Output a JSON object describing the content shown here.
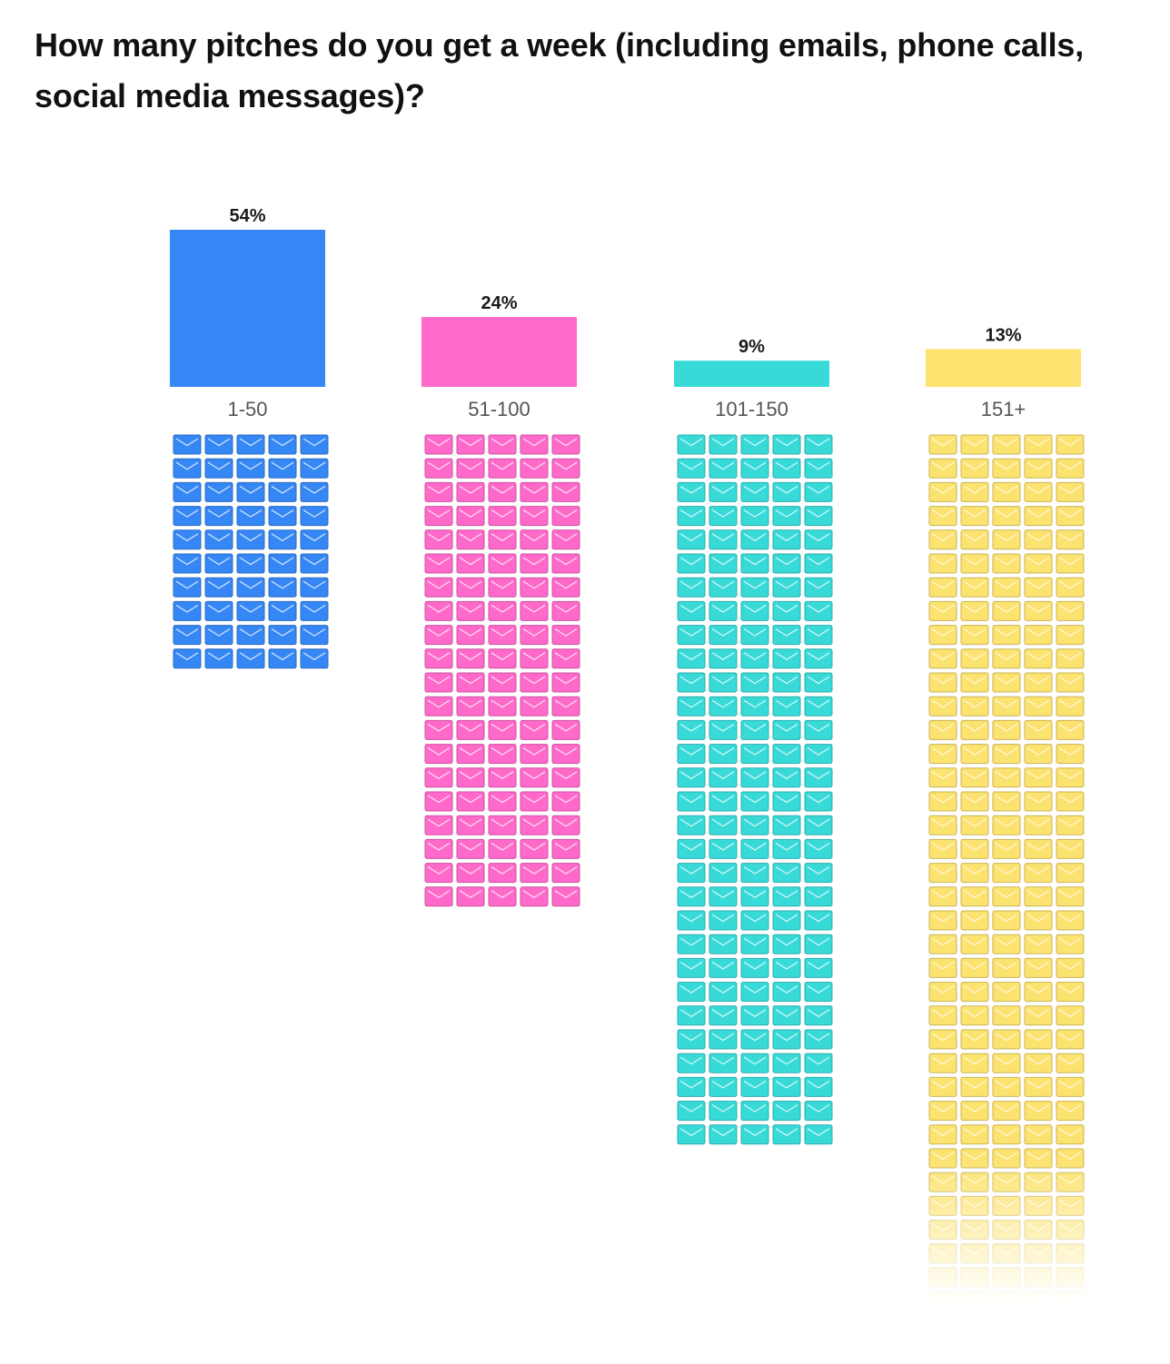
{
  "title": "How many pitches do you get a week (including emails, phone calls, social media messages)?",
  "chart_data": {
    "type": "bar",
    "title": "How many pitches do you get a week (including emails, phone calls, social media messages)?",
    "categories": [
      "1-50",
      "51-100",
      "101-150",
      "151+"
    ],
    "values": [
      54,
      24,
      9,
      13
    ],
    "value_labels": [
      "54%",
      "24%",
      "9%",
      "13%"
    ],
    "unit": "%",
    "colors": [
      "#3587F5",
      "#FF69CA",
      "#38DAD8",
      "#FCE26E"
    ],
    "icon": "envelope-icon",
    "icon_grid_columns": 5,
    "icon_rows_shown": [
      10,
      20,
      30,
      37
    ],
    "grid": false,
    "legend": "none"
  }
}
